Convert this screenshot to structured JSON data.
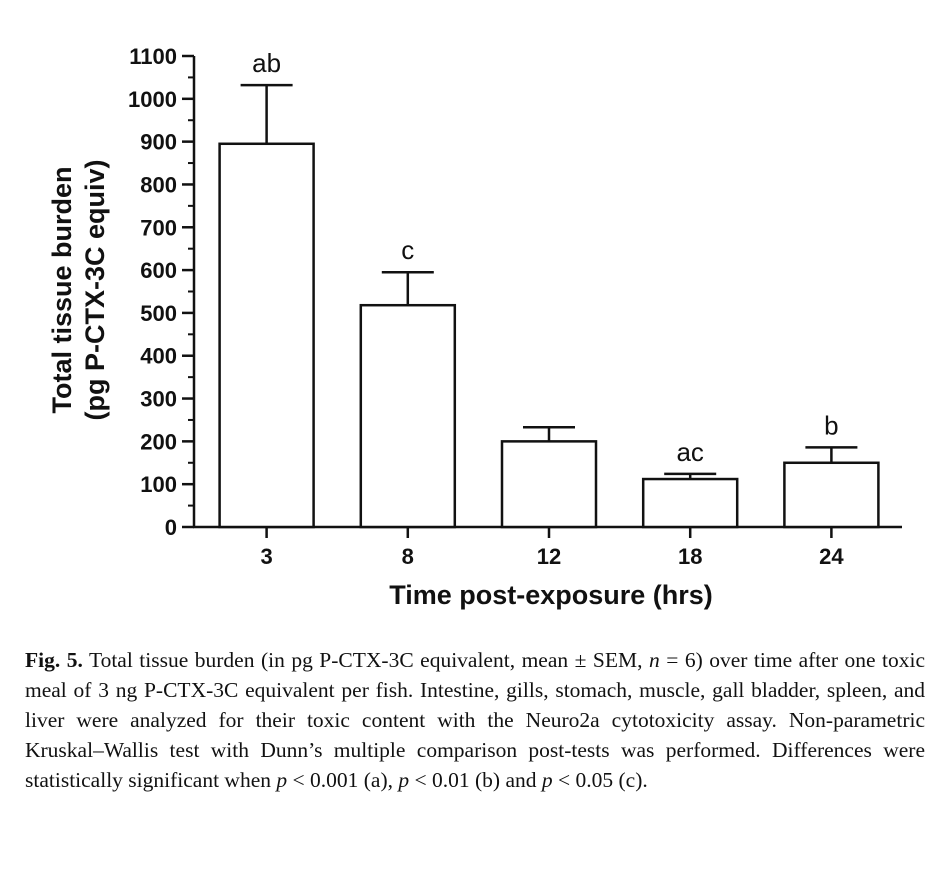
{
  "chart_data": {
    "type": "bar",
    "xlabel": "Time post-exposure (hrs)",
    "ylabel_lines": [
      "Total tissue burden",
      "(pg P-CTX-3C equiv)"
    ],
    "categories": [
      "3",
      "8",
      "12",
      "18",
      "24"
    ],
    "values": [
      895,
      518,
      200,
      112,
      150
    ],
    "error_plus": [
      137,
      77,
      33,
      12,
      36
    ],
    "significance_labels": [
      "ab",
      "c",
      "",
      "ac",
      "b"
    ],
    "ylim": [
      0,
      1100
    ],
    "yticks": [
      "0",
      "100",
      "200",
      "300",
      "400",
      "500",
      "600",
      "700",
      "800",
      "900",
      "1000",
      "1100"
    ],
    "bar_fill": "#ffffff",
    "stroke_color": "#111111",
    "grid": false
  },
  "caption": {
    "label": "Fig. 5.",
    "p1": " Total tissue burden (in pg P-CTX-3C equivalent, mean ± SEM, ",
    "n_var": "n",
    "p2": " = 6) over time after one toxic meal of 3 ng P-CTX-3C equivalent per fish. Intestine, gills, stomach, muscle, gall bladder, spleen, and liver were analyzed for their toxic content with the Neuro2a cytotoxicity assay. Non-parametric Kruskal–Wallis test with Dunn’s multiple comparison post-tests was performed. Differences were statistically significant when ",
    "p_var": "p",
    "c1": " < 0.001 (a), ",
    "c2": " < 0.01 (b) and ",
    "c3": " < 0.05 (c)."
  }
}
